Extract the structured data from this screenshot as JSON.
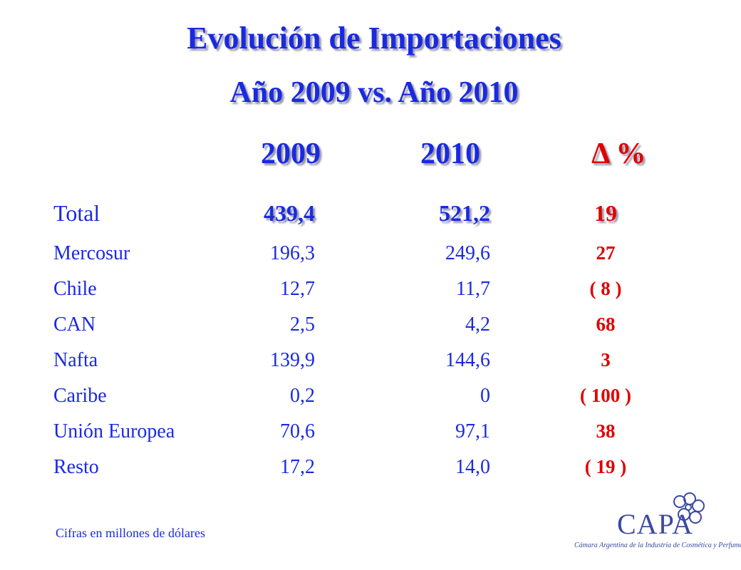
{
  "title": {
    "main": "Evolución de Importaciones",
    "sub": "Año 2009  vs.  Año 2010"
  },
  "headers": {
    "y2009": "2009",
    "y2010": "2010",
    "delta": "Δ %"
  },
  "rows": [
    {
      "label": "Total",
      "v2009": "439,4",
      "v2010": "521,2",
      "pct": "19"
    },
    {
      "label": "Mercosur",
      "v2009": "196,3",
      "v2010": "249,6",
      "pct": "27"
    },
    {
      "label": "Chile",
      "v2009": "12,7",
      "v2010": "11,7",
      "pct": "( 8 )"
    },
    {
      "label": "CAN",
      "v2009": "2,5",
      "v2010": "4,2",
      "pct": "68"
    },
    {
      "label": "Nafta",
      "v2009": "139,9",
      "v2010": "144,6",
      "pct": "3"
    },
    {
      "label": "Caribe",
      "v2009": "0,2",
      "v2010": "0",
      "pct": "( 100 )"
    },
    {
      "label": "Unión Europea",
      "v2009": "70,6",
      "v2010": "97,1",
      "pct": "38"
    },
    {
      "label": "Resto",
      "v2009": "17,2",
      "v2010": "14,0",
      "pct": "( 19 )"
    }
  ],
  "footnote": "Cifras en millones de dólares",
  "logo": {
    "name": "CAPA",
    "caption": "Cámara Argentina de la Industria de Cosmética y Perfumería"
  },
  "colors": {
    "blue": "#1a2ae0",
    "red": "#e00000",
    "logo": "#3a4aa0"
  }
}
